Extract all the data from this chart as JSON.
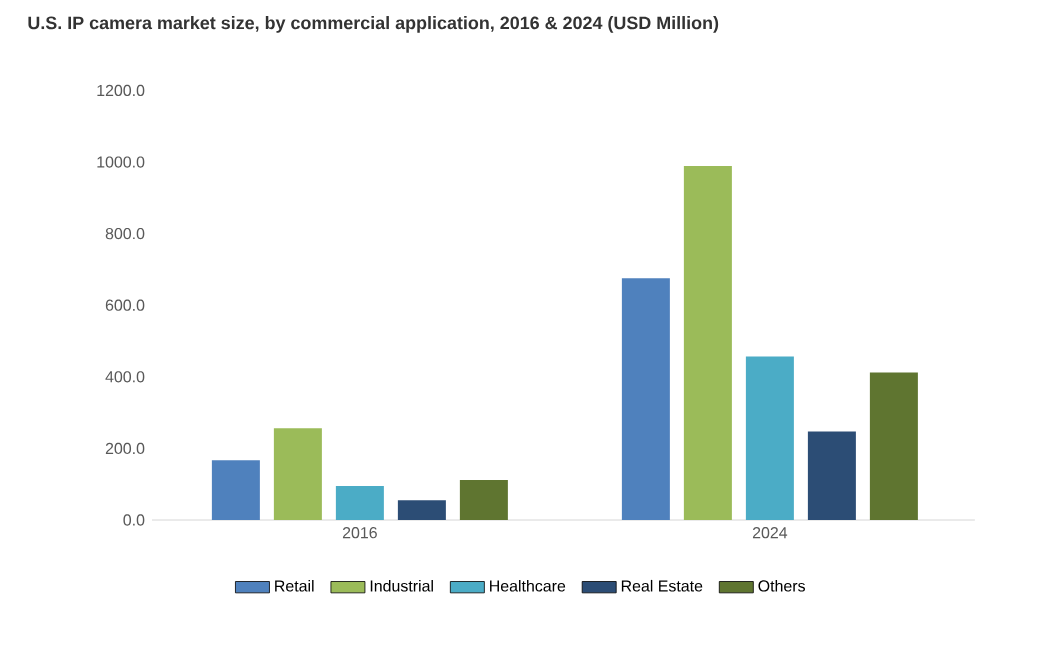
{
  "chart_data": {
    "type": "bar",
    "title": "U.S. IP camera market size, by commercial application, 2016 & 2024 (USD Million)",
    "categories": [
      "2016",
      "2024"
    ],
    "series": [
      {
        "name": "Retail",
        "color": "#4f81bd",
        "values": [
          167,
          675
        ]
      },
      {
        "name": "Industrial",
        "color": "#9bbb59",
        "values": [
          256,
          989
        ]
      },
      {
        "name": "Healthcare",
        "color": "#4bacc6",
        "values": [
          95,
          457
        ]
      },
      {
        "name": "Real Estate",
        "color": "#2c4d75",
        "values": [
          55,
          247
        ]
      },
      {
        "name": "Others",
        "color": "#5f7530",
        "values": [
          112,
          412
        ]
      }
    ],
    "ylim": [
      0,
      1200
    ],
    "yticks": [
      {
        "value": 0,
        "label": "0.0"
      },
      {
        "value": 200,
        "label": "200.0"
      },
      {
        "value": 400,
        "label": "400.0"
      },
      {
        "value": 600,
        "label": "600.0"
      },
      {
        "value": 800,
        "label": "800.0"
      },
      {
        "value": 1000,
        "label": "1000.0"
      },
      {
        "value": 1200,
        "label": "1200.0"
      }
    ],
    "legend": "bottom"
  }
}
